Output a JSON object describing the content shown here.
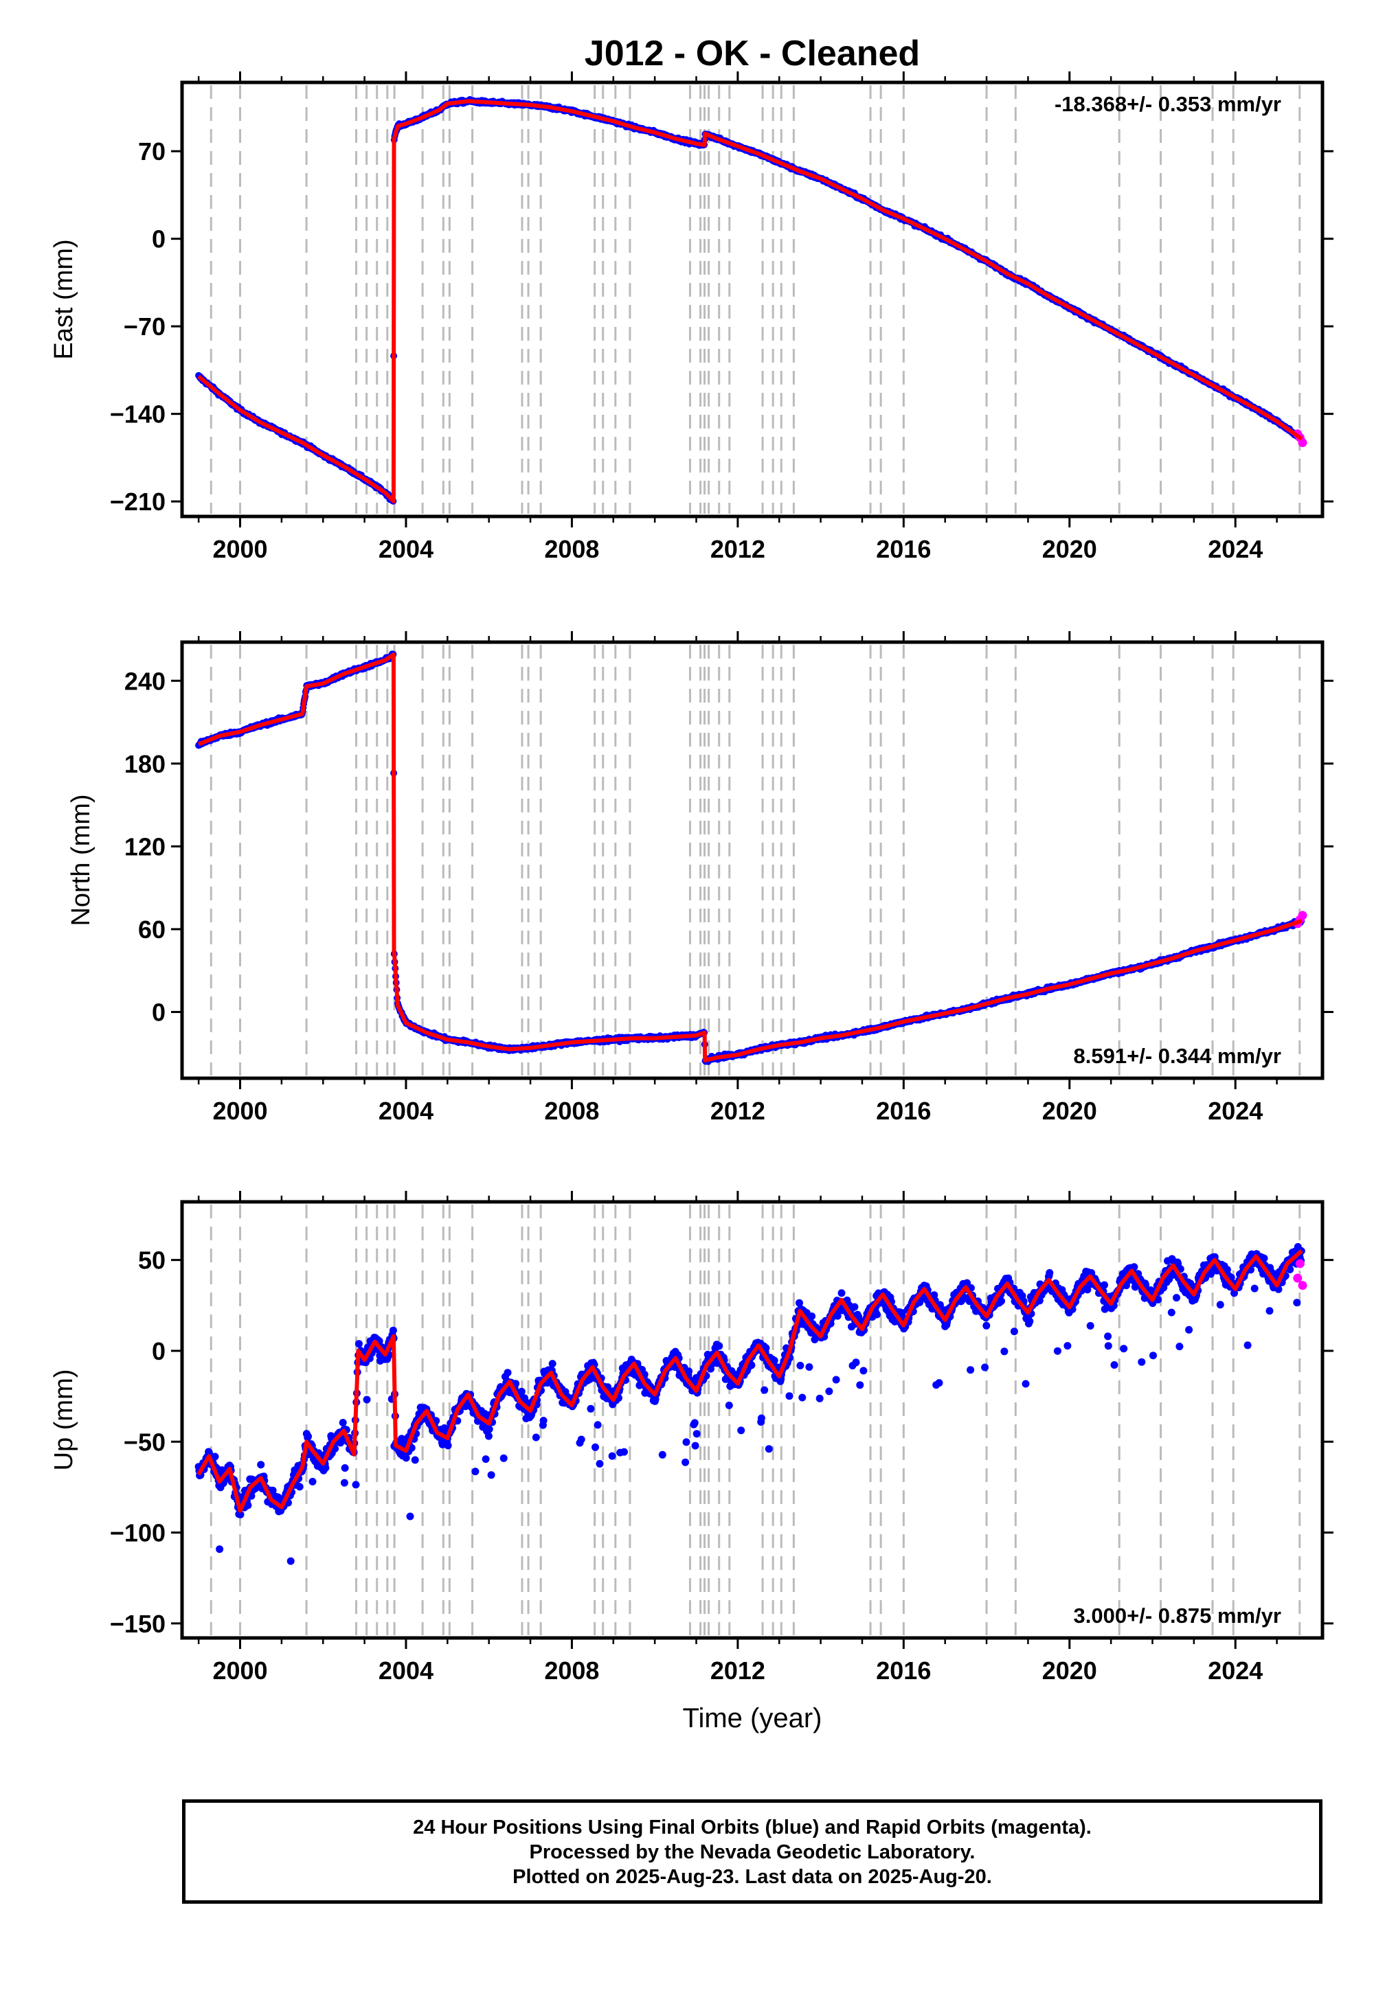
{
  "title": "J012  - OK - Cleaned",
  "xlabel": "Time (year)",
  "footer": {
    "line1": "24 Hour Positions Using Final Orbits (blue) and Rapid Orbits (magenta).",
    "line2": "Processed by the Nevada Geodetic Laboratory.",
    "line3": "Plotted on 2025-Aug-23. Last data on 2025-Aug-20."
  },
  "colors": {
    "final_orbits": "#0000ff",
    "rapid_orbits": "#ff00ff",
    "model": "#ff0000",
    "event_lines": "#bbbbbb"
  },
  "chart_data": [
    {
      "type": "scatter",
      "panel": "east",
      "ylabel": "East (mm)",
      "rate_label": "-18.368+/- 0.353 mm/yr",
      "xlim": [
        1998.6,
        2026.1
      ],
      "ylim": [
        -222,
        125
      ],
      "xticks": [
        2000,
        2004,
        2008,
        2012,
        2016,
        2020,
        2024
      ],
      "yticks": [
        -210,
        -140,
        -70,
        0,
        70
      ],
      "event_lines": [
        1999.3,
        2000.0,
        2001.6,
        2002.8,
        2003.05,
        2003.3,
        2003.55,
        2003.72,
        2004.4,
        2004.9,
        2005.05,
        2005.6,
        2006.8,
        2006.95,
        2007.25,
        2008.55,
        2008.75,
        2009.05,
        2009.4,
        2010.85,
        2011.1,
        2011.2,
        2011.3,
        2011.55,
        2011.8,
        2012.6,
        2012.85,
        2013.05,
        2013.35,
        2015.2,
        2015.45,
        2016.0,
        2018.0,
        2018.7,
        2021.2,
        2022.2,
        2023.45,
        2023.95,
        2025.55
      ],
      "series": [
        {
          "name": "Final Orbits",
          "color": "#0000ff",
          "x": [
            1999.0,
            1999.5,
            2000.0,
            2000.5,
            2001.0,
            2001.5,
            2002.0,
            2002.5,
            2003.0,
            2003.5,
            2003.7,
            2003.71,
            2003.8,
            2004.0,
            2004.4,
            2004.8,
            2005.0,
            2005.5,
            2006.0,
            2006.5,
            2007.0,
            2007.5,
            2008.0,
            2008.5,
            2009.0,
            2009.5,
            2010.0,
            2010.5,
            2011.0,
            2011.2,
            2011.21,
            2011.5,
            2012.0,
            2012.5,
            2013.0,
            2013.5,
            2014.0,
            2014.5,
            2015.0,
            2015.5,
            2016.0,
            2016.5,
            2017.0,
            2017.5,
            2018.0,
            2018.5,
            2019.0,
            2019.5,
            2020.0,
            2020.5,
            2021.0,
            2021.5,
            2022.0,
            2022.5,
            2023.0,
            2023.5,
            2024.0,
            2024.5,
            2025.0,
            2025.6
          ],
          "y": [
            -110,
            -124,
            -137,
            -147,
            -155,
            -163,
            -173,
            -182,
            -192,
            -203,
            -210,
            80,
            90,
            92,
            97,
            103,
            108,
            110,
            109,
            108,
            107,
            105,
            102,
            98,
            94,
            89,
            85,
            80,
            76,
            75,
            84,
            80,
            74,
            68,
            61,
            54,
            48,
            40,
            32,
            23,
            16,
            8,
            0,
            -9,
            -18,
            -28,
            -36,
            -46,
            -55,
            -64,
            -73,
            -82,
            -91,
            -100,
            -109,
            -118,
            -127,
            -136,
            -146,
            -160
          ]
        },
        {
          "name": "Rapid Orbits",
          "color": "#ff00ff",
          "x": [
            2025.5,
            2025.56,
            2025.62
          ],
          "y": [
            -156,
            -159,
            -163
          ]
        }
      ]
    },
    {
      "type": "scatter",
      "panel": "north",
      "ylabel": "North (mm)",
      "rate_label": "8.591+/- 0.344 mm/yr",
      "xlim": [
        1998.6,
        2026.1
      ],
      "ylim": [
        -48,
        268
      ],
      "xticks": [
        2000,
        2004,
        2008,
        2012,
        2016,
        2020,
        2024
      ],
      "yticks": [
        0,
        60,
        120,
        180,
        240
      ],
      "event_lines": [
        1999.3,
        2000.0,
        2001.6,
        2002.8,
        2003.05,
        2003.3,
        2003.55,
        2003.72,
        2004.4,
        2004.9,
        2005.05,
        2005.6,
        2006.8,
        2006.95,
        2007.25,
        2008.55,
        2008.75,
        2009.05,
        2009.4,
        2010.85,
        2011.1,
        2011.2,
        2011.3,
        2011.55,
        2011.8,
        2012.6,
        2012.85,
        2013.05,
        2013.35,
        2015.2,
        2015.45,
        2016.0,
        2018.0,
        2018.7,
        2021.2,
        2022.2,
        2023.45,
        2023.95,
        2025.55
      ],
      "series": [
        {
          "name": "Final Orbits",
          "color": "#0000ff",
          "x": [
            1999.0,
            1999.5,
            2000.0,
            2000.5,
            2001.0,
            2001.5,
            2001.6,
            2002.0,
            2002.5,
            2003.0,
            2003.5,
            2003.7,
            2003.71,
            2003.8,
            2004.0,
            2004.5,
            2005.0,
            2005.5,
            2006.0,
            2006.5,
            2007.0,
            2007.5,
            2008.0,
            2008.5,
            2009.0,
            2009.5,
            2010.0,
            2010.5,
            2011.0,
            2011.2,
            2011.21,
            2011.5,
            2012.0,
            2012.5,
            2013.0,
            2013.5,
            2014.0,
            2014.5,
            2015.0,
            2015.5,
            2016.0,
            2016.5,
            2017.0,
            2017.5,
            2018.0,
            2018.5,
            2019.0,
            2019.5,
            2020.0,
            2020.5,
            2021.0,
            2021.5,
            2022.0,
            2022.5,
            2023.0,
            2023.5,
            2024.0,
            2024.5,
            2025.0,
            2025.6
          ],
          "y": [
            194,
            200,
            203,
            208,
            212,
            216,
            236,
            238,
            245,
            250,
            255,
            259,
            45,
            5,
            -8,
            -15,
            -20,
            -22,
            -25,
            -27,
            -26,
            -24,
            -22,
            -21,
            -20,
            -19,
            -19,
            -18,
            -17,
            -15,
            -35,
            -33,
            -31,
            -27,
            -24,
            -22,
            -19,
            -17,
            -14,
            -11,
            -7,
            -4,
            -1,
            2,
            6,
            10,
            13,
            17,
            20,
            24,
            28,
            31,
            35,
            39,
            44,
            48,
            52,
            56,
            60,
            66
          ]
        },
        {
          "name": "Rapid Orbits",
          "color": "#ff00ff",
          "x": [
            2025.5,
            2025.56,
            2025.62
          ],
          "y": [
            64,
            67,
            70
          ]
        }
      ]
    },
    {
      "type": "scatter",
      "panel": "up",
      "ylabel": "Up (mm)",
      "rate_label": "3.000+/- 0.875 mm/yr",
      "xlim": [
        1998.6,
        2026.1
      ],
      "ylim": [
        -158,
        82
      ],
      "xticks": [
        2000,
        2004,
        2008,
        2012,
        2016,
        2020,
        2024
      ],
      "yticks": [
        -150,
        -100,
        -50,
        0,
        50
      ],
      "event_lines": [
        1999.3,
        2000.0,
        2001.6,
        2002.8,
        2003.05,
        2003.3,
        2003.55,
        2003.72,
        2004.4,
        2004.9,
        2005.05,
        2005.6,
        2006.8,
        2006.95,
        2007.25,
        2008.55,
        2008.75,
        2009.05,
        2009.4,
        2010.85,
        2011.1,
        2011.2,
        2011.3,
        2011.55,
        2011.8,
        2012.6,
        2012.85,
        2013.05,
        2013.35,
        2015.2,
        2015.45,
        2016.0,
        2018.0,
        2018.7,
        2021.2,
        2022.2,
        2023.45,
        2023.95,
        2025.55
      ],
      "series": [
        {
          "name": "Final Orbits",
          "color": "#0000ff",
          "x": [
            1999.0,
            1999.25,
            1999.5,
            1999.75,
            2000.0,
            2000.25,
            2000.5,
            2000.75,
            2001.0,
            2001.25,
            2001.5,
            2001.6,
            2001.75,
            2002.0,
            2002.25,
            2002.5,
            2002.75,
            2002.85,
            2003.0,
            2003.25,
            2003.5,
            2003.7,
            2003.75,
            2004.0,
            2004.25,
            2004.5,
            2004.75,
            2005.0,
            2005.25,
            2005.5,
            2005.75,
            2006.0,
            2006.25,
            2006.5,
            2006.75,
            2007.0,
            2007.25,
            2007.5,
            2007.75,
            2008.0,
            2008.25,
            2008.5,
            2008.75,
            2009.0,
            2009.25,
            2009.5,
            2009.75,
            2010.0,
            2010.25,
            2010.5,
            2010.75,
            2011.0,
            2011.25,
            2011.5,
            2011.75,
            2012.0,
            2012.25,
            2012.5,
            2012.75,
            2013.0,
            2013.25,
            2013.5,
            2013.75,
            2014.0,
            2014.25,
            2014.5,
            2014.75,
            2015.0,
            2015.25,
            2015.5,
            2015.75,
            2016.0,
            2016.25,
            2016.5,
            2016.75,
            2017.0,
            2017.25,
            2017.5,
            2017.75,
            2018.0,
            2018.25,
            2018.5,
            2018.75,
            2019.0,
            2019.25,
            2019.5,
            2019.75,
            2020.0,
            2020.25,
            2020.5,
            2020.75,
            2021.0,
            2021.25,
            2021.5,
            2021.75,
            2022.0,
            2022.25,
            2022.5,
            2022.75,
            2023.0,
            2023.25,
            2023.5,
            2023.75,
            2024.0,
            2024.25,
            2024.5,
            2024.75,
            2025.0,
            2025.25,
            2025.6
          ],
          "y": [
            -68,
            -58,
            -72,
            -65,
            -88,
            -75,
            -70,
            -82,
            -86,
            -74,
            -64,
            -50,
            -55,
            -62,
            -50,
            -44,
            -57,
            0,
            -5,
            5,
            -2,
            8,
            -52,
            -55,
            -40,
            -33,
            -45,
            -48,
            -32,
            -24,
            -36,
            -40,
            -24,
            -17,
            -28,
            -33,
            -18,
            -12,
            -24,
            -30,
            -16,
            -9,
            -20,
            -27,
            -14,
            -7,
            -18,
            -24,
            -11,
            -4,
            -15,
            -22,
            -8,
            -1,
            -12,
            -18,
            -5,
            3,
            -6,
            -14,
            0,
            22,
            14,
            8,
            20,
            28,
            19,
            12,
            24,
            31,
            22,
            14,
            27,
            34,
            25,
            17,
            28,
            35,
            26,
            19,
            30,
            37,
            28,
            21,
            32,
            39,
            31,
            24,
            35,
            41,
            33,
            26,
            37,
            44,
            35,
            28,
            40,
            47,
            38,
            31,
            43,
            50,
            41,
            34,
            45,
            52,
            44,
            36,
            48,
            55
          ]
        },
        {
          "name": "Rapid Orbits",
          "color": "#ff00ff",
          "x": [
            2025.5,
            2025.56,
            2025.62
          ],
          "y": [
            40,
            48,
            36
          ]
        }
      ]
    }
  ]
}
